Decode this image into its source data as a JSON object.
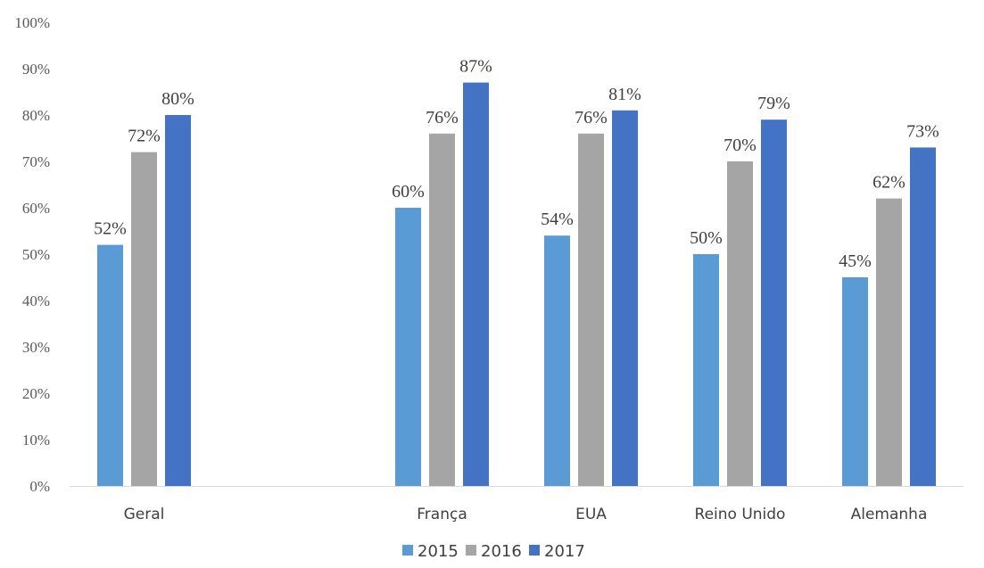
{
  "chart_data": {
    "type": "bar",
    "title": "",
    "xlabel": "",
    "ylabel": "",
    "ylim": [
      0,
      1
    ],
    "yticks": [
      "0%",
      "10%",
      "20%",
      "30%",
      "40%",
      "50%",
      "60%",
      "70%",
      "80%",
      "90%",
      "100%"
    ],
    "grid": false,
    "legend_position": "bottom",
    "categories": [
      "Geral",
      "",
      "França",
      "EUA",
      "Reino Unido",
      "Alemanha"
    ],
    "series": [
      {
        "name": "2015",
        "color": "#5B9BD5",
        "values": [
          0.52,
          null,
          0.6,
          0.54,
          0.5,
          0.45
        ],
        "labels": [
          "52%",
          "",
          "60%",
          "54%",
          "50%",
          "45%"
        ]
      },
      {
        "name": "2016",
        "color": "#A5A5A5",
        "values": [
          0.72,
          null,
          0.76,
          0.76,
          0.7,
          0.62
        ],
        "labels": [
          "72%",
          "",
          "76%",
          "76%",
          "70%",
          "62%"
        ]
      },
      {
        "name": "2017",
        "color": "#4472C4",
        "values": [
          0.8,
          null,
          0.87,
          0.81,
          0.79,
          0.73
        ],
        "labels": [
          "80%",
          "",
          "87%",
          "81%",
          "79%",
          "73%"
        ]
      }
    ]
  }
}
